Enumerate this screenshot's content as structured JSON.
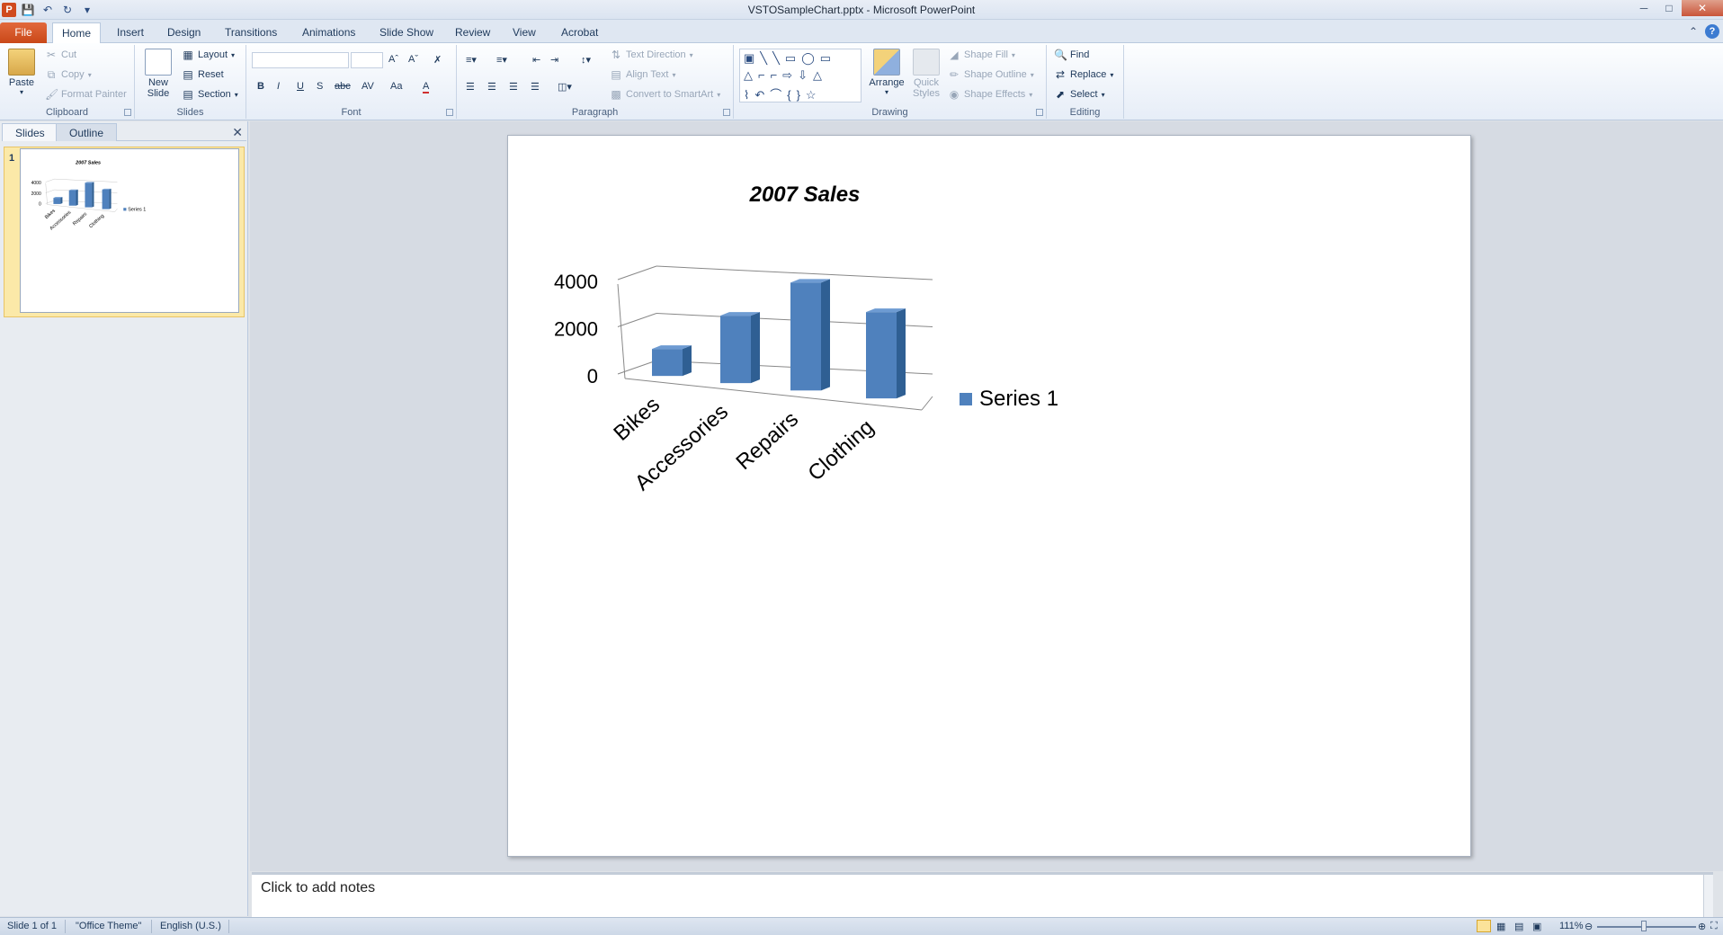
{
  "window": {
    "title": "VSTOSampleChart.pptx  -  Microsoft PowerPoint",
    "app_icon": "P"
  },
  "tabs": [
    "File",
    "Home",
    "Insert",
    "Design",
    "Transitions",
    "Animations",
    "Slide Show",
    "Review",
    "View",
    "Acrobat"
  ],
  "ribbon": {
    "clipboard": {
      "label": "Clipboard",
      "paste": "Paste",
      "cut": "Cut",
      "copy": "Copy",
      "format_painter": "Format Painter"
    },
    "slides": {
      "label": "Slides",
      "new_slide": "New Slide",
      "layout": "Layout",
      "reset": "Reset",
      "section": "Section"
    },
    "font": {
      "label": "Font",
      "bold": "B",
      "italic": "I",
      "underline": "U",
      "shadow": "S",
      "strike": "abc",
      "spacing": "AV",
      "case": "Aa",
      "color": "A"
    },
    "paragraph": {
      "label": "Paragraph",
      "text_direction": "Text Direction",
      "align_text": "Align Text",
      "convert_smartart": "Convert to SmartArt"
    },
    "drawing": {
      "label": "Drawing",
      "arrange": "Arrange",
      "quick_styles": "Quick Styles",
      "shape_fill": "Shape Fill",
      "shape_outline": "Shape Outline",
      "shape_effects": "Shape Effects"
    },
    "editing": {
      "label": "Editing",
      "find": "Find",
      "replace": "Replace",
      "select": "Select"
    }
  },
  "left_panel": {
    "tabs": [
      "Slides",
      "Outline"
    ],
    "close_icon": "close-icon",
    "slide_number": "1"
  },
  "chart_data": {
    "type": "bar",
    "title": "2007 Sales",
    "categories": [
      "Bikes",
      "Accessories",
      "Repairs",
      "Clothing"
    ],
    "series": [
      {
        "name": "Series 1",
        "values": [
          1000,
          2500,
          4000,
          3200
        ]
      }
    ],
    "yticks": [
      "4000",
      "2000",
      "0"
    ],
    "ylim": [
      0,
      4000
    ],
    "legend": "right",
    "style": "3d-column",
    "bar_color": "#4f81bd"
  },
  "notes": {
    "placeholder": "Click to add notes"
  },
  "status": {
    "slide": "Slide 1 of 1",
    "theme": "\"Office Theme\"",
    "language": "English (U.S.)",
    "zoom": "111%"
  }
}
